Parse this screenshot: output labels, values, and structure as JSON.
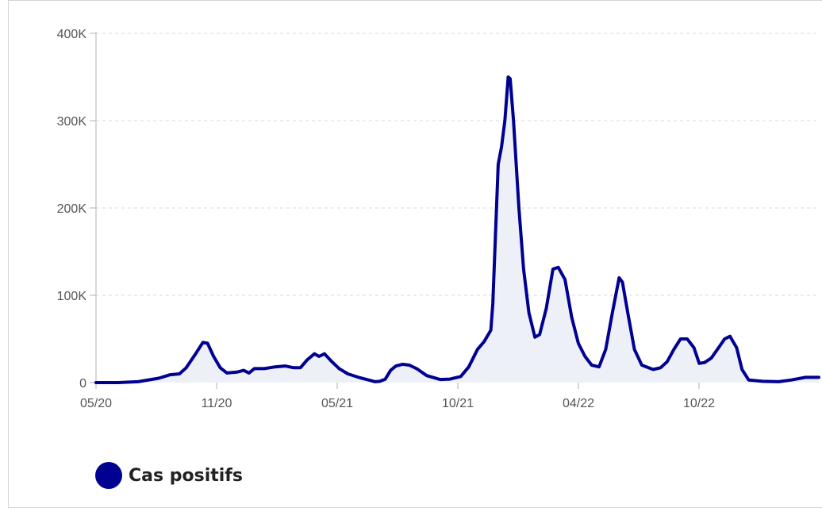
{
  "chart_data": {
    "type": "area",
    "x_tick_labels": [
      "05/20",
      "11/20",
      "05/21",
      "10/21",
      "04/22",
      "10/22"
    ],
    "y_tick_labels": [
      "0",
      "100K",
      "200K",
      "300K",
      "400K"
    ],
    "y_ticks": [
      0,
      100000,
      200000,
      300000,
      400000
    ],
    "ylim": [
      0,
      400000
    ],
    "xlim": [
      "2020-05-13",
      "2023-04-30"
    ],
    "grid": true,
    "legend_position": "bottom-left",
    "series": [
      {
        "name": "Cas positifs",
        "color": "#000091",
        "fill": "#eef0f8",
        "points": [
          [
            "2020-05-13",
            0
          ],
          [
            "2020-06-15",
            0
          ],
          [
            "2020-07-15",
            1000
          ],
          [
            "2020-08-15",
            5000
          ],
          [
            "2020-09-01",
            9000
          ],
          [
            "2020-09-15",
            10000
          ],
          [
            "2020-09-25",
            17000
          ],
          [
            "2020-10-10",
            34000
          ],
          [
            "2020-10-20",
            46000
          ],
          [
            "2020-10-27",
            45000
          ],
          [
            "2020-11-05",
            30000
          ],
          [
            "2020-11-15",
            17000
          ],
          [
            "2020-11-25",
            11000
          ],
          [
            "2020-12-10",
            12000
          ],
          [
            "2020-12-20",
            14000
          ],
          [
            "2020-12-28",
            11000
          ],
          [
            "2021-01-05",
            16000
          ],
          [
            "2021-01-20",
            16000
          ],
          [
            "2021-02-05",
            18000
          ],
          [
            "2021-02-20",
            19000
          ],
          [
            "2021-03-05",
            17000
          ],
          [
            "2021-03-15",
            17000
          ],
          [
            "2021-03-25",
            26000
          ],
          [
            "2021-04-05",
            33000
          ],
          [
            "2021-04-12",
            30000
          ],
          [
            "2021-04-20",
            33000
          ],
          [
            "2021-05-01",
            24000
          ],
          [
            "2021-05-12",
            16000
          ],
          [
            "2021-05-25",
            10000
          ],
          [
            "2021-06-10",
            6000
          ],
          [
            "2021-06-25",
            3000
          ],
          [
            "2021-07-05",
            1000
          ],
          [
            "2021-07-12",
            1500
          ],
          [
            "2021-07-20",
            4000
          ],
          [
            "2021-07-28",
            14000
          ],
          [
            "2021-08-05",
            19000
          ],
          [
            "2021-08-15",
            21000
          ],
          [
            "2021-08-25",
            20000
          ],
          [
            "2021-09-05",
            16000
          ],
          [
            "2021-09-20",
            8000
          ],
          [
            "2021-10-10",
            3500
          ],
          [
            "2021-10-25",
            4000
          ],
          [
            "2021-11-10",
            7000
          ],
          [
            "2021-11-22",
            18000
          ],
          [
            "2021-12-05",
            38000
          ],
          [
            "2021-12-15",
            47000
          ],
          [
            "2021-12-25",
            60000
          ],
          [
            "2021-12-28",
            90000
          ],
          [
            "2022-01-01",
            170000
          ],
          [
            "2022-01-05",
            250000
          ],
          [
            "2022-01-10",
            270000
          ],
          [
            "2022-01-15",
            300000
          ],
          [
            "2022-01-20",
            350000
          ],
          [
            "2022-01-23",
            348000
          ],
          [
            "2022-01-28",
            300000
          ],
          [
            "2022-02-05",
            200000
          ],
          [
            "2022-02-12",
            130000
          ],
          [
            "2022-02-20",
            80000
          ],
          [
            "2022-03-01",
            52000
          ],
          [
            "2022-03-08",
            55000
          ],
          [
            "2022-03-18",
            85000
          ],
          [
            "2022-03-28",
            130000
          ],
          [
            "2022-04-05",
            132000
          ],
          [
            "2022-04-15",
            118000
          ],
          [
            "2022-04-25",
            75000
          ],
          [
            "2022-05-05",
            45000
          ],
          [
            "2022-05-15",
            30000
          ],
          [
            "2022-05-25",
            20000
          ],
          [
            "2022-06-05",
            18000
          ],
          [
            "2022-06-15",
            38000
          ],
          [
            "2022-06-25",
            80000
          ],
          [
            "2022-07-05",
            120000
          ],
          [
            "2022-07-10",
            115000
          ],
          [
            "2022-07-18",
            80000
          ],
          [
            "2022-07-28",
            38000
          ],
          [
            "2022-08-08",
            20000
          ],
          [
            "2022-08-25",
            15000
          ],
          [
            "2022-09-05",
            17000
          ],
          [
            "2022-09-15",
            24000
          ],
          [
            "2022-09-25",
            38000
          ],
          [
            "2022-10-05",
            50000
          ],
          [
            "2022-10-15",
            50000
          ],
          [
            "2022-10-25",
            40000
          ],
          [
            "2022-11-02",
            22000
          ],
          [
            "2022-11-10",
            23000
          ],
          [
            "2022-11-20",
            28000
          ],
          [
            "2022-12-01",
            40000
          ],
          [
            "2022-12-10",
            50000
          ],
          [
            "2022-12-18",
            53000
          ],
          [
            "2022-12-28",
            40000
          ],
          [
            "2023-01-05",
            15000
          ],
          [
            "2023-01-15",
            3000
          ],
          [
            "2023-02-05",
            1500
          ],
          [
            "2023-03-01",
            1000
          ],
          [
            "2023-03-20",
            3000
          ],
          [
            "2023-04-10",
            6000
          ],
          [
            "2023-04-30",
            6000
          ]
        ]
      }
    ]
  }
}
